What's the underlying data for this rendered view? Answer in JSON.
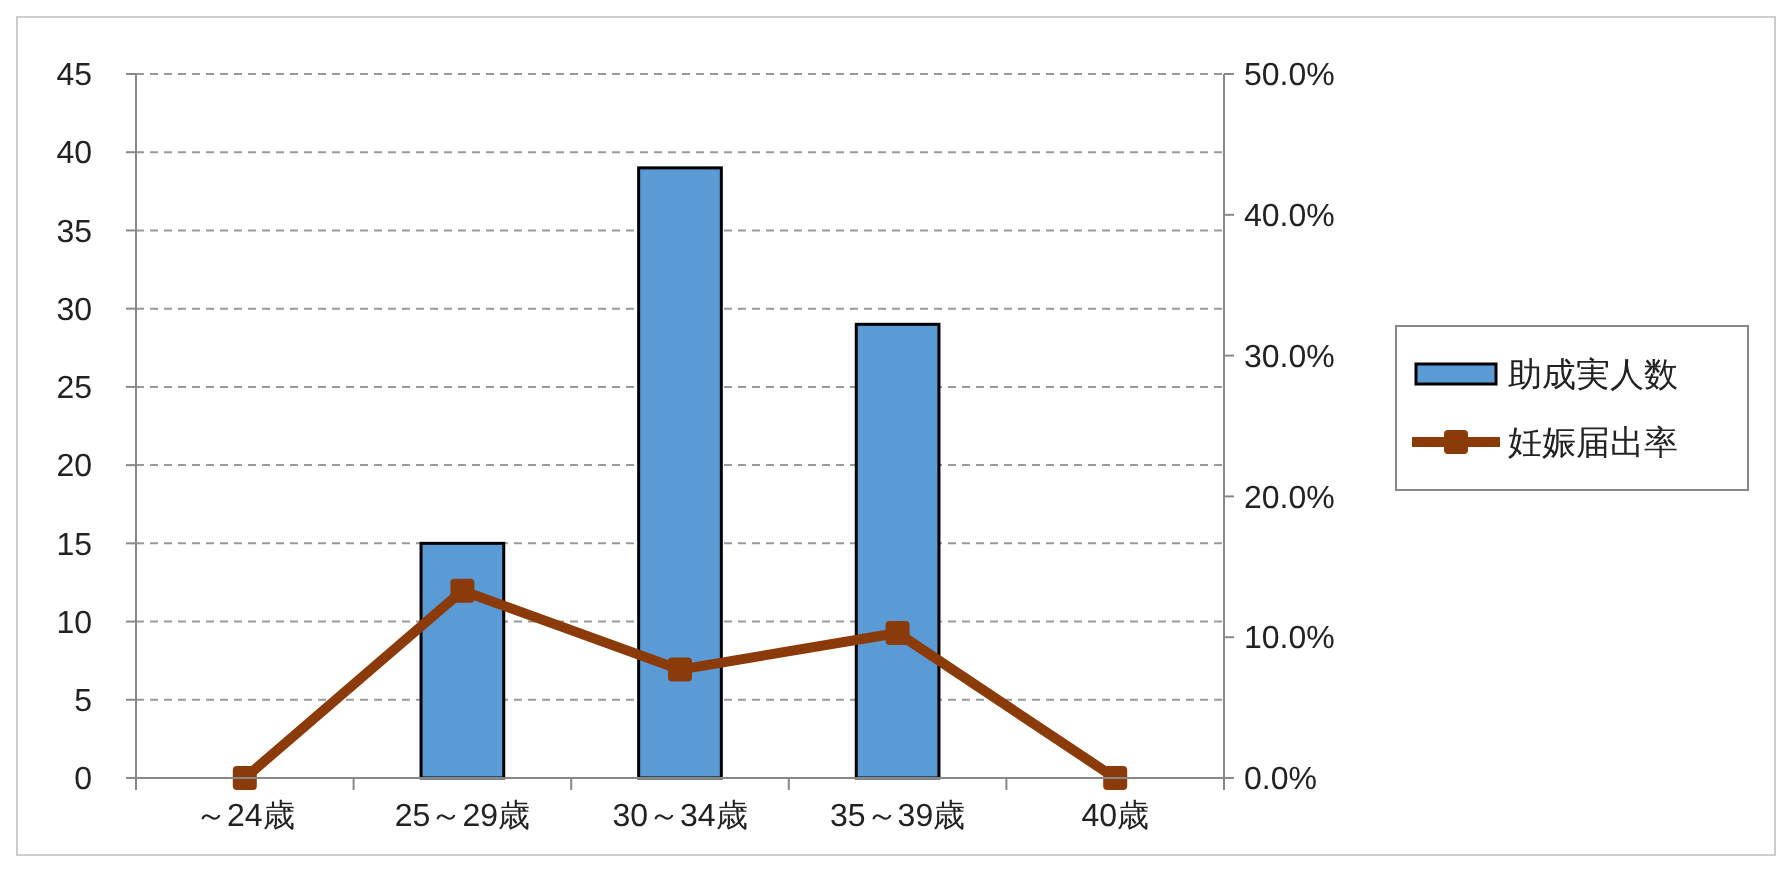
{
  "chart_data": {
    "type": "bar",
    "categories": [
      "～24歳",
      "25～29歳",
      "30～34歳",
      "35～39歳",
      "40歳"
    ],
    "series": [
      {
        "name": "助成実人数",
        "color": "#5b9bd5",
        "values": [
          0,
          15,
          39,
          29,
          0
        ]
      },
      {
        "name": "妊娠届出率",
        "type": "line",
        "axis": "y2",
        "color": "#8b3a0a",
        "marker": "square",
        "values": [
          0,
          13.3,
          7.7,
          10.3,
          0
        ]
      }
    ],
    "ylim": [
      0,
      45
    ],
    "yticks": [
      0,
      5,
      10,
      15,
      20,
      25,
      30,
      35,
      40,
      45
    ],
    "y2lim": [
      0,
      50
    ],
    "y2ticks": [
      {
        "value": 0,
        "label": "0.0%"
      },
      {
        "value": 10,
        "label": "10.0%"
      },
      {
        "value": 20,
        "label": "20.0%"
      },
      {
        "value": 30,
        "label": "30.0%"
      },
      {
        "value": 40,
        "label": "40.0%"
      },
      {
        "value": 50,
        "label": "50.0%"
      }
    ],
    "grid": "y",
    "legend": "right"
  }
}
